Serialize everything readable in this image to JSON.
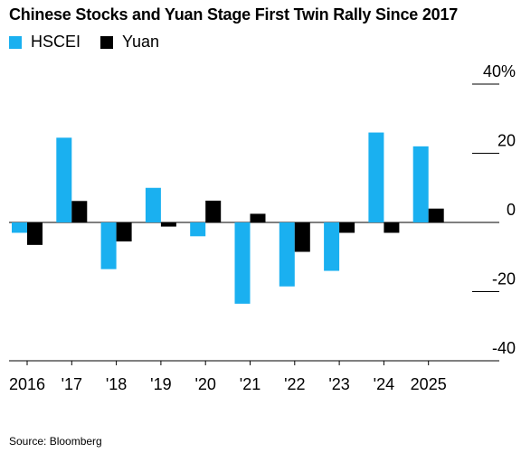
{
  "chart_data": {
    "type": "bar",
    "title": "Chinese Stocks and Yuan Stage First Twin Rally Since 2017",
    "categories": [
      "2016",
      "'17",
      "'18",
      "'19",
      "'20",
      "'21",
      "'22",
      "'23",
      "'24",
      "2025"
    ],
    "series": [
      {
        "name": "HSCEI",
        "color": "#1ab0f0",
        "values": [
          -3.0,
          24.5,
          -13.5,
          10.0,
          -4.0,
          -23.5,
          -18.5,
          -14.0,
          26.0,
          22.0
        ]
      },
      {
        "name": "Yuan",
        "color": "#000000",
        "values": [
          -6.5,
          6.2,
          -5.5,
          -1.2,
          6.3,
          2.5,
          -8.5,
          -3.0,
          -3.0,
          4.0
        ]
      }
    ],
    "ylim": [
      -40,
      40
    ],
    "yticks": [
      {
        "value": 40,
        "label": "40%"
      },
      {
        "value": 20,
        "label": "20"
      },
      {
        "value": 0,
        "label": "0"
      },
      {
        "value": -20,
        "label": "-20"
      },
      {
        "value": -40,
        "label": "-40"
      }
    ],
    "axis_side": "right",
    "legend_position": "top-left",
    "source": "Source: Bloomberg"
  }
}
